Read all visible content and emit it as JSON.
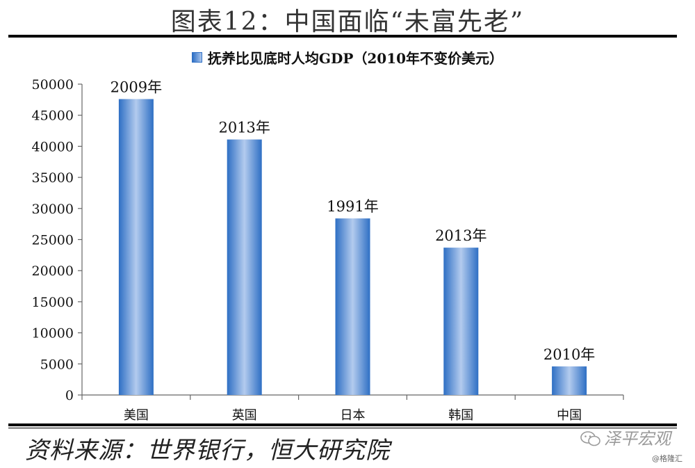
{
  "figure_title": "图表12：中国面临“未富先老”",
  "source": "资料来源：世界银行，恒大研究院",
  "watermark": "泽平宏观",
  "watermark_small": "@格隆汇",
  "colors": {
    "bar_dark": "#2e6fc4",
    "bar_light": "#a9c4ec",
    "axis": "#666666"
  },
  "chart_data": {
    "type": "bar",
    "title": "",
    "legend": [
      "抚养比见底时人均GDP（2010年不变价美元）"
    ],
    "legend_position": "top",
    "categories": [
      "美国",
      "英国",
      "日本",
      "韩国",
      "中国"
    ],
    "series": [
      {
        "name": "抚养比见底时人均GDP（2010年不变价美元）",
        "values": [
          47600,
          41100,
          28400,
          23700,
          4600
        ]
      }
    ],
    "data_labels": [
      "2009年",
      "2013年",
      "1991年",
      "2013年",
      "2010年"
    ],
    "yticks": [
      "0",
      "5000",
      "10000",
      "15000",
      "20000",
      "25000",
      "30000",
      "35000",
      "40000",
      "45000",
      "50000"
    ],
    "ylim": [
      0,
      50000
    ],
    "grid": false,
    "xlabel": "",
    "ylabel": ""
  }
}
